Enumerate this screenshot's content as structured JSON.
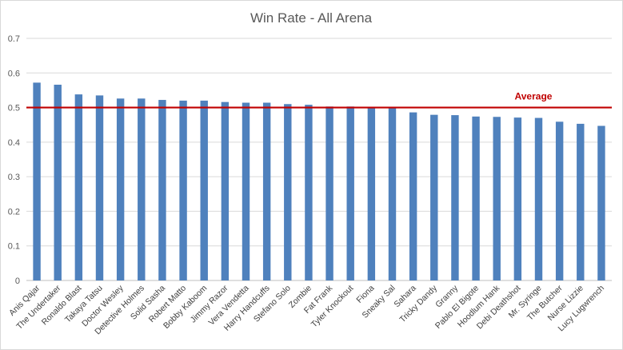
{
  "chart_data": {
    "type": "bar",
    "title": "Win Rate - All Arena",
    "ylim": [
      0,
      0.7
    ],
    "yticks": [
      "0",
      "0.1",
      "0.2",
      "0.3",
      "0.4",
      "0.5",
      "0.6",
      "0.7"
    ],
    "grid": true,
    "categories": [
      "Anis Qajar",
      "The Undertaker",
      "Ronaldo Blast",
      "Takaya Tatsu",
      "Doctor Wesley",
      "Detective Holmes",
      "Solid Sasha",
      "Robert Matto",
      "Bobby Kaboom",
      "Jimmy Razor",
      "Vera Vendetta",
      "Harry Handcuffs",
      "Stefano Solo",
      "Zombie",
      "Fat Frank",
      "Tyler Knockout",
      "Fiona",
      "Sneaky Sal",
      "Sahara",
      "Tricky Dandy",
      "Granny",
      "Pablo El Bigote",
      "Hoodlum Hank",
      "Debi Deathshot",
      "Mr. Syringe",
      "The Butcher",
      "Nurse Lizzie",
      "Lucy Lugwrench"
    ],
    "values": [
      0.572,
      0.566,
      0.538,
      0.535,
      0.526,
      0.526,
      0.522,
      0.52,
      0.52,
      0.516,
      0.514,
      0.514,
      0.51,
      0.508,
      0.503,
      0.503,
      0.501,
      0.499,
      0.486,
      0.479,
      0.478,
      0.474,
      0.473,
      0.471,
      0.47,
      0.459,
      0.453,
      0.447
    ],
    "reference_line": {
      "label": "Average",
      "value": 0.5,
      "color": "#c00000"
    },
    "bar_color": "#4f81bd"
  }
}
